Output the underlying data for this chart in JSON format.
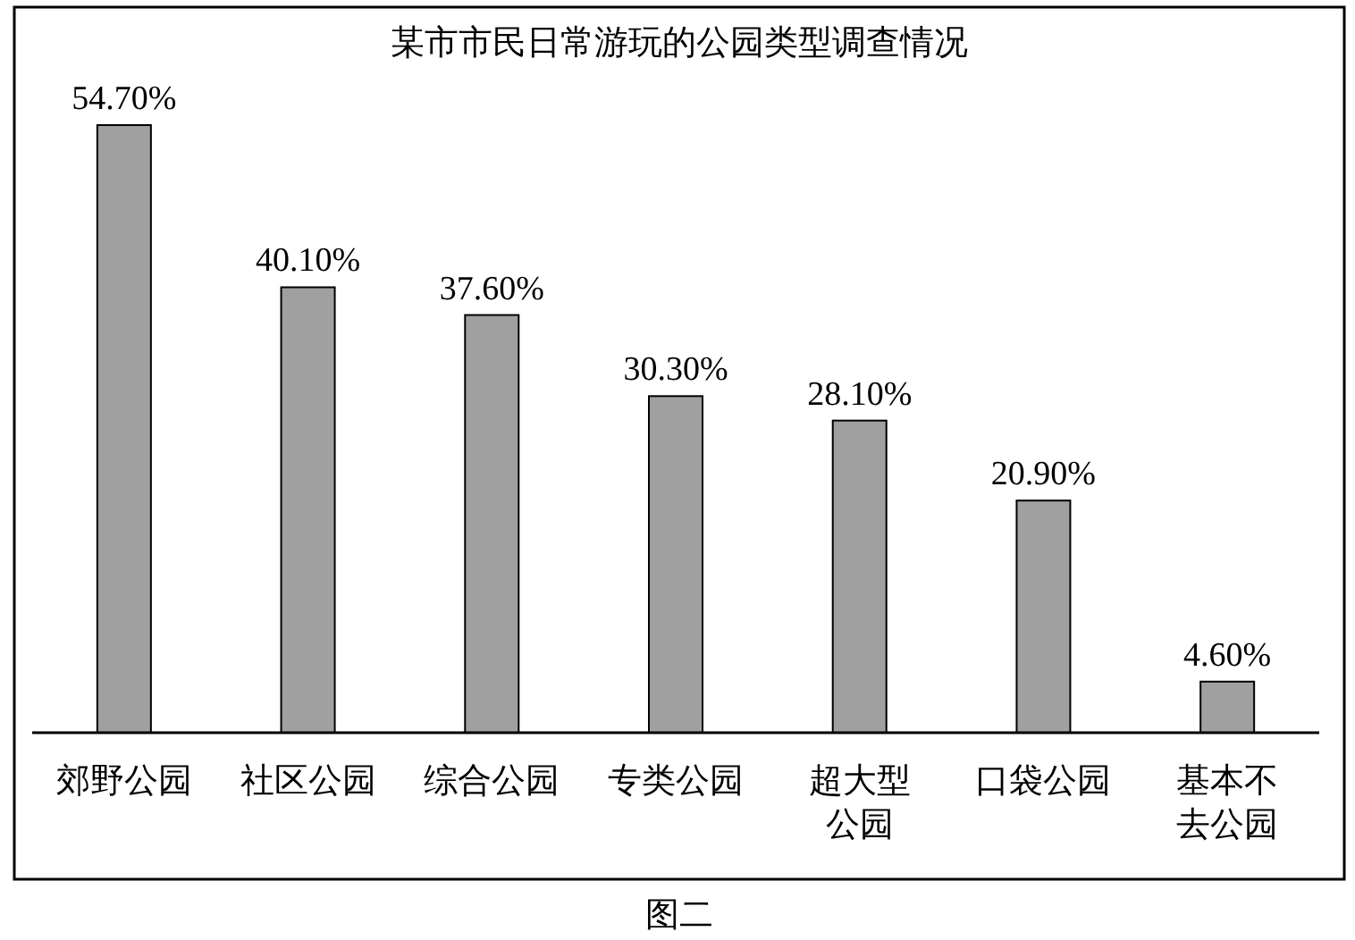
{
  "chart_data": {
    "type": "bar",
    "title": "某市市民日常游玩的公园类型调查情况",
    "categories": [
      "郊野公园",
      "社区公园",
      "综合公园",
      "专类公园",
      "超大型公园",
      "口袋公园",
      "基本不去公园"
    ],
    "values": [
      54.7,
      40.1,
      37.6,
      30.3,
      28.1,
      20.9,
      4.6
    ],
    "value_labels": [
      "54.70%",
      "40.10%",
      "37.60%",
      "30.30%",
      "28.10%",
      "20.90%",
      "4.60%"
    ],
    "color": "#a0a0a0",
    "annotations": [
      "图二"
    ]
  }
}
